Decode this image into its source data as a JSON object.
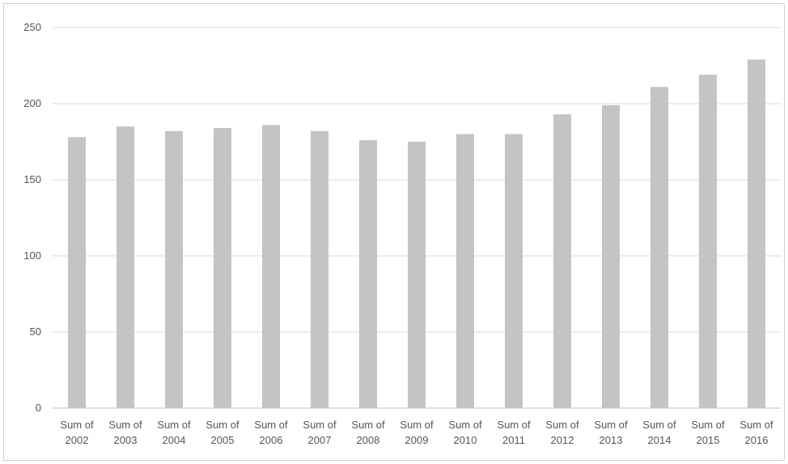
{
  "chart_data": {
    "type": "bar",
    "title": "",
    "xlabel": "",
    "ylabel": "",
    "ylim": [
      0,
      250
    ],
    "yticks": [
      0,
      50,
      100,
      150,
      200,
      250
    ],
    "grid": true,
    "legend": "none",
    "bar_color": "#c4c4c4",
    "categories": [
      [
        "Sum of",
        "2002"
      ],
      [
        "Sum of",
        "2003"
      ],
      [
        "Sum of",
        "2004"
      ],
      [
        "Sum of",
        "2005"
      ],
      [
        "Sum of",
        "2006"
      ],
      [
        "Sum of",
        "2007"
      ],
      [
        "Sum of",
        "2008"
      ],
      [
        "Sum of",
        "2009"
      ],
      [
        "Sum of",
        "2010"
      ],
      [
        "Sum of",
        "2011"
      ],
      [
        "Sum of",
        "2012"
      ],
      [
        "Sum of",
        "2013"
      ],
      [
        "Sum of",
        "2014"
      ],
      [
        "Sum of",
        "2015"
      ],
      [
        "Sum of",
        "2016"
      ]
    ],
    "values": [
      178,
      185,
      182,
      184,
      186,
      182,
      176,
      175,
      180,
      180,
      193,
      199,
      211,
      219,
      229
    ]
  }
}
